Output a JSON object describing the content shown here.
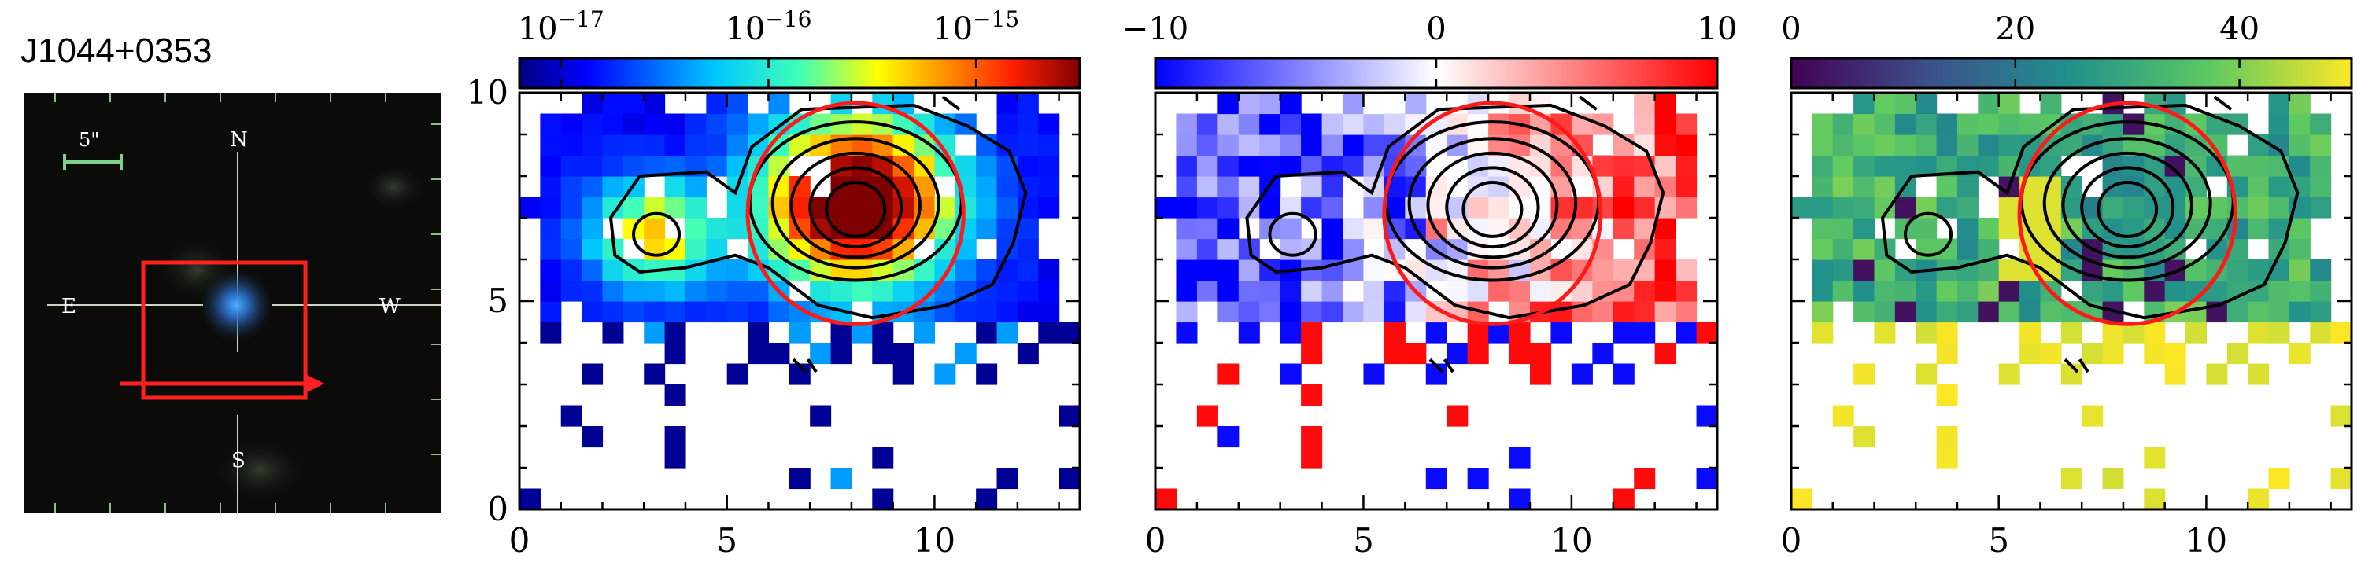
{
  "object_name": "J1044+0353",
  "finder": {
    "scale_label": "5\"",
    "compass": {
      "north": "N",
      "south": "S",
      "east": "E",
      "west": "W"
    }
  },
  "panels": [
    {
      "id": "flux",
      "colormap": "jet",
      "colorbar_ticks": [
        {
          "value": -17,
          "base": "10",
          "exp": "−17"
        },
        {
          "value": -16,
          "base": "10",
          "exp": "−16"
        },
        {
          "value": -15,
          "base": "10",
          "exp": "−15"
        }
      ],
      "colorbar_range": [
        -17.2,
        -14.5
      ],
      "colorbar_scale": "log"
    },
    {
      "id": "velocity",
      "colormap": "bwr",
      "colorbar_ticks": [
        {
          "value": -10,
          "label": "−10"
        },
        {
          "value": 0,
          "label": "0"
        },
        {
          "value": 10,
          "label": "10"
        }
      ],
      "colorbar_range": [
        -10,
        10
      ],
      "colorbar_scale": "linear"
    },
    {
      "id": "dispersion",
      "colormap": "viridis",
      "colorbar_ticks": [
        {
          "value": 0,
          "label": "0"
        },
        {
          "value": 20,
          "label": "20"
        },
        {
          "value": 40,
          "label": "40"
        }
      ],
      "colorbar_range": [
        0,
        50
      ],
      "colorbar_scale": "linear"
    }
  ],
  "axes": {
    "x_ticks": [
      "0",
      "5",
      "10"
    ],
    "y_ticks": [
      "0",
      "5",
      "10"
    ],
    "xlim": [
      0,
      13.5
    ],
    "ylim": [
      0,
      10
    ],
    "aperture_circle": {
      "x": 8.1,
      "y": 7.1,
      "r": 2.6
    },
    "peaks": [
      {
        "x": 8.1,
        "y": 7.4
      },
      {
        "x": 3.3,
        "y": 6.6
      }
    ]
  }
}
